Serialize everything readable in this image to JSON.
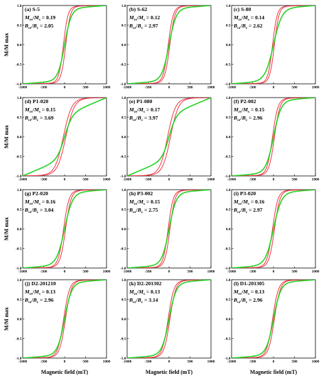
{
  "figure": {
    "ylabel": "M/M max",
    "xlabel": "Magnetic field (mT)",
    "colors": {
      "hysteresis": "#ee3340",
      "irm": "#1fd21f",
      "axis": "#000000",
      "background": "#ffffff"
    }
  },
  "chart_data": [
    {
      "type": "line",
      "id": "a",
      "title": "(a) S-5",
      "ratio1": "0.19",
      "ratio2": "2.05",
      "curve": {
        "hc": 28,
        "sat": 110,
        "irm_w": 160,
        "irm_shape": "s"
      },
      "xlim": [
        -1000,
        1000
      ],
      "ylim": [
        -1.0,
        1.0
      ],
      "xticks": [
        -1000,
        -500,
        0,
        500,
        1000
      ],
      "yticks": [
        -1.0,
        -0.5,
        0.0,
        0.5,
        1.0
      ],
      "x_tick_labels": [
        "-1000",
        "-500",
        "0",
        "500",
        "1000"
      ],
      "y_tick_labels": [
        "-1.0",
        "-0.5",
        "0.0",
        "0.5",
        "1.0"
      ],
      "series": [
        {
          "color": "#ee3340",
          "kind": "hysteresis"
        },
        {
          "color": "#1fd21f",
          "kind": "irm"
        }
      ]
    },
    {
      "type": "line",
      "id": "b",
      "title": "(b) S-62",
      "ratio1": "0.12",
      "ratio2": "2.97",
      "curve": {
        "hc": 20,
        "sat": 120,
        "irm_w": 170,
        "irm_shape": "s"
      },
      "xlim": [
        -1000,
        1000
      ],
      "ylim": [
        -1.0,
        1.0
      ],
      "xticks": [
        -1000,
        -500,
        0,
        500,
        1000
      ],
      "yticks": [
        -1.0,
        -0.5,
        0.0,
        0.5,
        1.0
      ],
      "x_tick_labels": [
        "-1000",
        "-500",
        "0",
        "500",
        "1000"
      ],
      "y_tick_labels": [
        "-1.0",
        "-0.5",
        "0.0",
        "0.5",
        "1.0"
      ],
      "series": [
        {
          "color": "#ee3340",
          "kind": "hysteresis"
        },
        {
          "color": "#1fd21f",
          "kind": "irm"
        }
      ]
    },
    {
      "type": "line",
      "id": "c",
      "title": "(c) S-80",
      "ratio1": "0.14",
      "ratio2": "2.62",
      "curve": {
        "hc": 22,
        "sat": 110,
        "irm_w": 200,
        "irm_shape": "s"
      },
      "xlim": [
        -1000,
        1000
      ],
      "ylim": [
        -1.0,
        1.0
      ],
      "xticks": [
        -1000,
        -500,
        0,
        500,
        1000
      ],
      "yticks": [
        -1.0,
        -0.5,
        0.0,
        0.5,
        1.0
      ],
      "x_tick_labels": [
        "-1000",
        "-500",
        "0",
        "500",
        "1000"
      ],
      "y_tick_labels": [
        "-1.0",
        "-0.5",
        "0.0",
        "0.5",
        "1.0"
      ],
      "series": [
        {
          "color": "#ee3340",
          "kind": "hysteresis"
        },
        {
          "color": "#1fd21f",
          "kind": "irm"
        }
      ]
    },
    {
      "type": "line",
      "id": "d",
      "title": "(d) P1-020",
      "ratio1": "0.15",
      "ratio2": "3.69",
      "curve": {
        "hc": 30,
        "sat": 200,
        "irm_w": 180,
        "irm_shape": "lin"
      },
      "xlim": [
        -1000,
        1000
      ],
      "ylim": [
        -1.0,
        1.0
      ],
      "xticks": [
        -1000,
        -500,
        0,
        500,
        1000
      ],
      "yticks": [
        -1.0,
        -0.5,
        0.0,
        0.5,
        1.0
      ],
      "x_tick_labels": [
        "-1000",
        "-500",
        "0",
        "500",
        "1000"
      ],
      "y_tick_labels": [
        "-1.0",
        "-0.5",
        "0.0",
        "0.5",
        "1.0"
      ],
      "series": [
        {
          "color": "#ee3340",
          "kind": "hysteresis"
        },
        {
          "color": "#1fd21f",
          "kind": "irm"
        }
      ]
    },
    {
      "type": "line",
      "id": "e",
      "title": "(e) P1-080",
      "ratio1": "0.17",
      "ratio2": "3.97",
      "curve": {
        "hc": 35,
        "sat": 190,
        "irm_w": 170,
        "irm_shape": "lin"
      },
      "xlim": [
        -1000,
        1000
      ],
      "ylim": [
        -1.0,
        1.0
      ],
      "xticks": [
        -1000,
        -500,
        0,
        500,
        1000
      ],
      "yticks": [
        -1.0,
        -0.5,
        0.0,
        0.5,
        1.0
      ],
      "x_tick_labels": [
        "-1000",
        "-500",
        "0",
        "500",
        "1000"
      ],
      "y_tick_labels": [
        "-1.0",
        "-0.5",
        "0.0",
        "0.5",
        "1.0"
      ],
      "series": [
        {
          "color": "#ee3340",
          "kind": "hysteresis"
        },
        {
          "color": "#1fd21f",
          "kind": "irm"
        }
      ]
    },
    {
      "type": "line",
      "id": "f",
      "title": "(f) P2-002",
      "ratio1": "0.15",
      "ratio2": "2.96",
      "curve": {
        "hc": 24,
        "sat": 130,
        "irm_w": 180,
        "irm_shape": "s"
      },
      "xlim": [
        -1000,
        1000
      ],
      "ylim": [
        -1.0,
        1.0
      ],
      "xticks": [
        -1000,
        -500,
        0,
        500,
        1000
      ],
      "yticks": [
        -1.0,
        -0.5,
        0.0,
        0.5,
        1.0
      ],
      "x_tick_labels": [
        "-1000",
        "-500",
        "0",
        "500",
        "1000"
      ],
      "y_tick_labels": [
        "-1.0",
        "-0.5",
        "0.0",
        "0.5",
        "1.0"
      ],
      "series": [
        {
          "color": "#ee3340",
          "kind": "hysteresis"
        },
        {
          "color": "#1fd21f",
          "kind": "irm"
        }
      ]
    },
    {
      "type": "line",
      "id": "g",
      "title": "(g) P2-020",
      "ratio1": "0.16",
      "ratio2": "3.04",
      "curve": {
        "hc": 24,
        "sat": 130,
        "irm_w": 190,
        "irm_shape": "s"
      },
      "xlim": [
        -1000,
        1000
      ],
      "ylim": [
        -1.0,
        1.0
      ],
      "xticks": [
        -1000,
        -500,
        0,
        500,
        1000
      ],
      "yticks": [
        -1.0,
        -0.5,
        0.0,
        0.5,
        1.0
      ],
      "x_tick_labels": [
        "-1000",
        "-500",
        "0",
        "500",
        "1000"
      ],
      "y_tick_labels": [
        "-1.0",
        "-0.5",
        "0.0",
        "0.5",
        "1.0"
      ],
      "series": [
        {
          "color": "#ee3340",
          "kind": "hysteresis"
        },
        {
          "color": "#1fd21f",
          "kind": "irm"
        }
      ]
    },
    {
      "type": "line",
      "id": "h",
      "title": "(h) P3-002",
      "ratio1": "0.15",
      "ratio2": "2.75",
      "curve": {
        "hc": 22,
        "sat": 120,
        "irm_w": 170,
        "irm_shape": "s"
      },
      "xlim": [
        -1000,
        1000
      ],
      "ylim": [
        -1.0,
        1.0
      ],
      "xticks": [
        -1000,
        -500,
        0,
        500,
        1000
      ],
      "yticks": [
        -1.0,
        -0.5,
        0.0,
        0.5,
        1.0
      ],
      "x_tick_labels": [
        "-1000",
        "-500",
        "0",
        "500",
        "1000"
      ],
      "y_tick_labels": [
        "-1.0",
        "-0.5",
        "0.0",
        "0.5",
        "1.0"
      ],
      "series": [
        {
          "color": "#ee3340",
          "kind": "hysteresis"
        },
        {
          "color": "#1fd21f",
          "kind": "irm"
        }
      ]
    },
    {
      "type": "line",
      "id": "i",
      "title": "(i) P3-020",
      "ratio1": "0.16",
      "ratio2": "2.97",
      "curve": {
        "hc": 24,
        "sat": 130,
        "irm_w": 190,
        "irm_shape": "s"
      },
      "xlim": [
        -1000,
        1000
      ],
      "ylim": [
        -1.0,
        1.0
      ],
      "xticks": [
        -1000,
        -500,
        0,
        500,
        1000
      ],
      "yticks": [
        -1.0,
        -0.5,
        0.0,
        0.5,
        1.0
      ],
      "x_tick_labels": [
        "-1000",
        "-500",
        "0",
        "500",
        "1000"
      ],
      "y_tick_labels": [
        "-1.0",
        "-0.5",
        "0.0",
        "0.5",
        "1.0"
      ],
      "series": [
        {
          "color": "#ee3340",
          "kind": "hysteresis"
        },
        {
          "color": "#1fd21f",
          "kind": "irm"
        }
      ]
    },
    {
      "type": "line",
      "id": "j",
      "title": "(j) D2-201210",
      "ratio1": "0.13",
      "ratio2": "2.96",
      "curve": {
        "hc": 22,
        "sat": 140,
        "irm_w": 170,
        "irm_shape": "s"
      },
      "xlim": [
        -1000,
        1000
      ],
      "ylim": [
        -1.0,
        1.0
      ],
      "xticks": [
        -1000,
        -500,
        0,
        500,
        1000
      ],
      "yticks": [
        -1.0,
        -0.5,
        0.0,
        0.5,
        1.0
      ],
      "x_tick_labels": [
        "-1000",
        "-500",
        "0",
        "500",
        "1000"
      ],
      "y_tick_labels": [
        "-1.0",
        "-0.5",
        "0.0",
        "0.5",
        "1.0"
      ],
      "series": [
        {
          "color": "#ee3340",
          "kind": "hysteresis"
        },
        {
          "color": "#1fd21f",
          "kind": "irm"
        }
      ]
    },
    {
      "type": "line",
      "id": "k",
      "title": "(k) D2-201302",
      "ratio1": "0.13",
      "ratio2": "3.14",
      "curve": {
        "hc": 22,
        "sat": 140,
        "irm_w": 170,
        "irm_shape": "s"
      },
      "xlim": [
        -1000,
        1000
      ],
      "ylim": [
        -1.0,
        1.0
      ],
      "xticks": [
        -1000,
        -500,
        0,
        500,
        1000
      ],
      "yticks": [
        -1.0,
        -0.5,
        0.0,
        0.5,
        1.0
      ],
      "x_tick_labels": [
        "-1000",
        "-500",
        "0",
        "500",
        "1000"
      ],
      "y_tick_labels": [
        "-1.0",
        "-0.5",
        "0.0",
        "0.5",
        "1.0"
      ],
      "series": [
        {
          "color": "#ee3340",
          "kind": "hysteresis"
        },
        {
          "color": "#1fd21f",
          "kind": "irm"
        }
      ]
    },
    {
      "type": "line",
      "id": "l",
      "title": "(l) D1-201305",
      "ratio1": "0.13",
      "ratio2": "2.96",
      "curve": {
        "hc": 22,
        "sat": 140,
        "irm_w": 170,
        "irm_shape": "s"
      },
      "xlim": [
        -1000,
        1000
      ],
      "ylim": [
        -1.0,
        1.0
      ],
      "xticks": [
        -1000,
        -500,
        0,
        500,
        1000
      ],
      "yticks": [
        -1.0,
        -0.5,
        0.0,
        0.5,
        1.0
      ],
      "x_tick_labels": [
        "-1000",
        "-500",
        "0",
        "500",
        "1000"
      ],
      "y_tick_labels": [
        "-1.0",
        "-0.5",
        "0.0",
        "0.5",
        "1.0"
      ],
      "series": [
        {
          "color": "#ee3340",
          "kind": "hysteresis"
        },
        {
          "color": "#1fd21f",
          "kind": "irm"
        }
      ]
    }
  ]
}
